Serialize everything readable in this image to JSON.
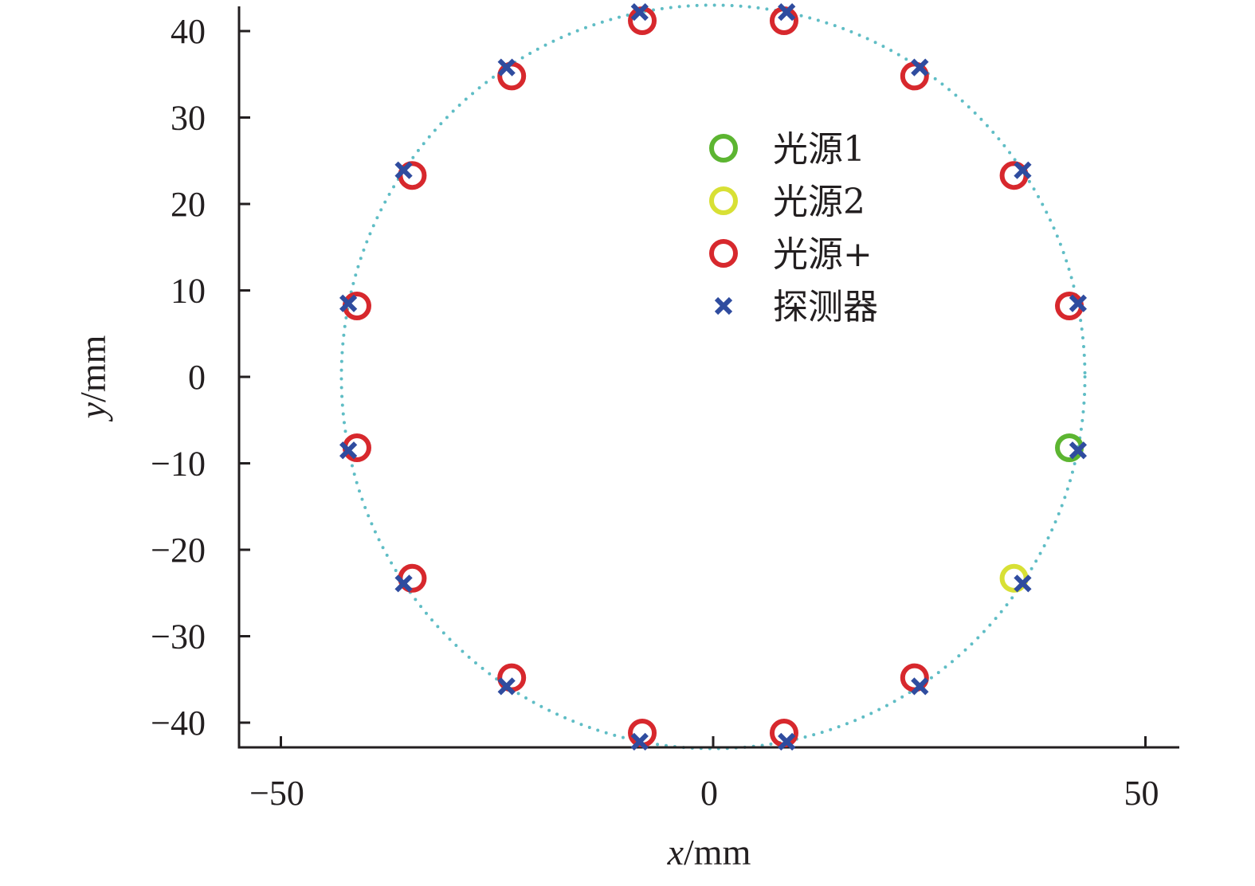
{
  "chart_data": {
    "type": "scatter",
    "xlabel": {
      "var": "x",
      "unit": "/mm"
    },
    "ylabel": {
      "var": "y",
      "unit": "/mm"
    },
    "xlim": [
      -55,
      53
    ],
    "ylim": [
      -43,
      43
    ],
    "xticks": [
      -50,
      0,
      50
    ],
    "yticks": [
      40,
      30,
      20,
      10,
      0,
      -10,
      -20,
      -30,
      -40
    ],
    "x_tick_labels": [
      "−50",
      "0",
      "50"
    ],
    "y_tick_labels": [
      "40",
      "30",
      "20",
      "10",
      "0",
      "−10",
      "−20",
      "−30",
      "−40"
    ],
    "grid": false,
    "legend_position": "upper-right",
    "boundary": {
      "cx": 0,
      "cy": 0,
      "r": 43,
      "style": "dotted",
      "color": "#5fbdc5"
    },
    "series": [
      {
        "name": "光源1",
        "marker": "circle-open",
        "color": "#5cb531",
        "points": [
          [
            41.2,
            -8.2
          ]
        ]
      },
      {
        "name": "光源2",
        "marker": "circle-open",
        "color": "#d8e035",
        "points": [
          [
            34.8,
            -23.3
          ]
        ]
      },
      {
        "name": "光源+",
        "marker": "circle-open",
        "color": "#d7282d",
        "points": [
          [
            -8.2,
            41.2
          ],
          [
            8.2,
            41.2
          ],
          [
            23.3,
            34.8
          ],
          [
            34.8,
            23.3
          ],
          [
            41.2,
            8.2
          ],
          [
            23.3,
            -34.8
          ],
          [
            8.2,
            -41.2
          ],
          [
            -8.2,
            -41.2
          ],
          [
            -23.3,
            -34.8
          ],
          [
            -34.8,
            -23.3
          ],
          [
            -41.2,
            -8.2
          ],
          [
            -41.2,
            8.2
          ],
          [
            -34.8,
            23.3
          ],
          [
            -23.3,
            34.8
          ]
        ]
      },
      {
        "name": "探测器",
        "marker": "x",
        "color": "#2f4c9f",
        "points": [
          [
            -8.5,
            42.2
          ],
          [
            8.5,
            42.2
          ],
          [
            23.9,
            35.8
          ],
          [
            35.8,
            23.9
          ],
          [
            42.2,
            8.5
          ],
          [
            42.2,
            -8.5
          ],
          [
            35.8,
            -23.9
          ],
          [
            23.9,
            -35.8
          ],
          [
            8.5,
            -42.2
          ],
          [
            -8.5,
            -42.2
          ],
          [
            -23.9,
            -35.8
          ],
          [
            -35.8,
            -23.9
          ],
          [
            -42.2,
            -8.5
          ],
          [
            -42.2,
            8.5
          ],
          [
            -35.8,
            23.9
          ],
          [
            -23.9,
            35.8
          ]
        ]
      }
    ]
  }
}
